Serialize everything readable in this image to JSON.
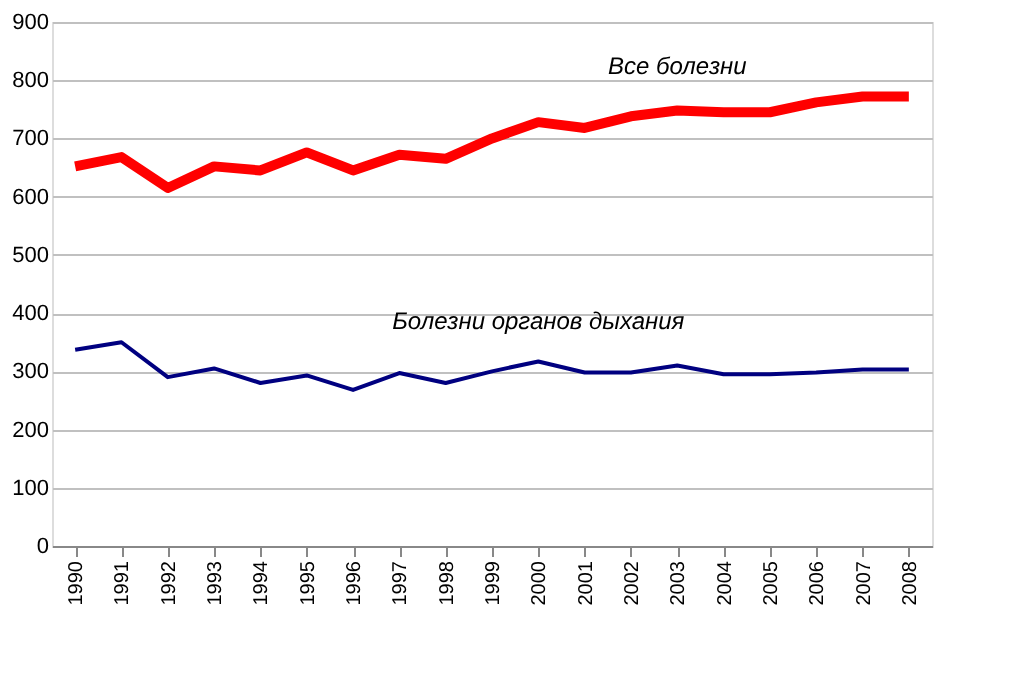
{
  "chart_data": {
    "type": "line",
    "categories": [
      "1990",
      "1991",
      "1992",
      "1993",
      "1994",
      "1995",
      "1996",
      "1997",
      "1998",
      "1999",
      "2000",
      "2001",
      "2002",
      "2003",
      "2004",
      "2005",
      "2006",
      "2007",
      "2008"
    ],
    "series": [
      {
        "name": "Все болезни",
        "color": "#ff0000",
        "values": [
          652,
          668,
          615,
          652,
          645,
          676,
          645,
          672,
          665,
          700,
          728,
          718,
          738,
          748,
          745,
          745,
          762,
          772,
          772
        ]
      },
      {
        "name": "Болезни органов дыхания",
        "color": "#000080",
        "values": [
          337,
          350,
          290,
          305,
          280,
          293,
          268,
          297,
          280,
          300,
          317,
          298,
          298,
          310,
          295,
          295,
          298,
          303,
          303
        ]
      }
    ],
    "ylim": [
      0,
      900
    ],
    "yticks": [
      0,
      100,
      200,
      300,
      400,
      500,
      600,
      700,
      800,
      900
    ],
    "grid": "y",
    "marker": "none",
    "line_style": "solid"
  }
}
